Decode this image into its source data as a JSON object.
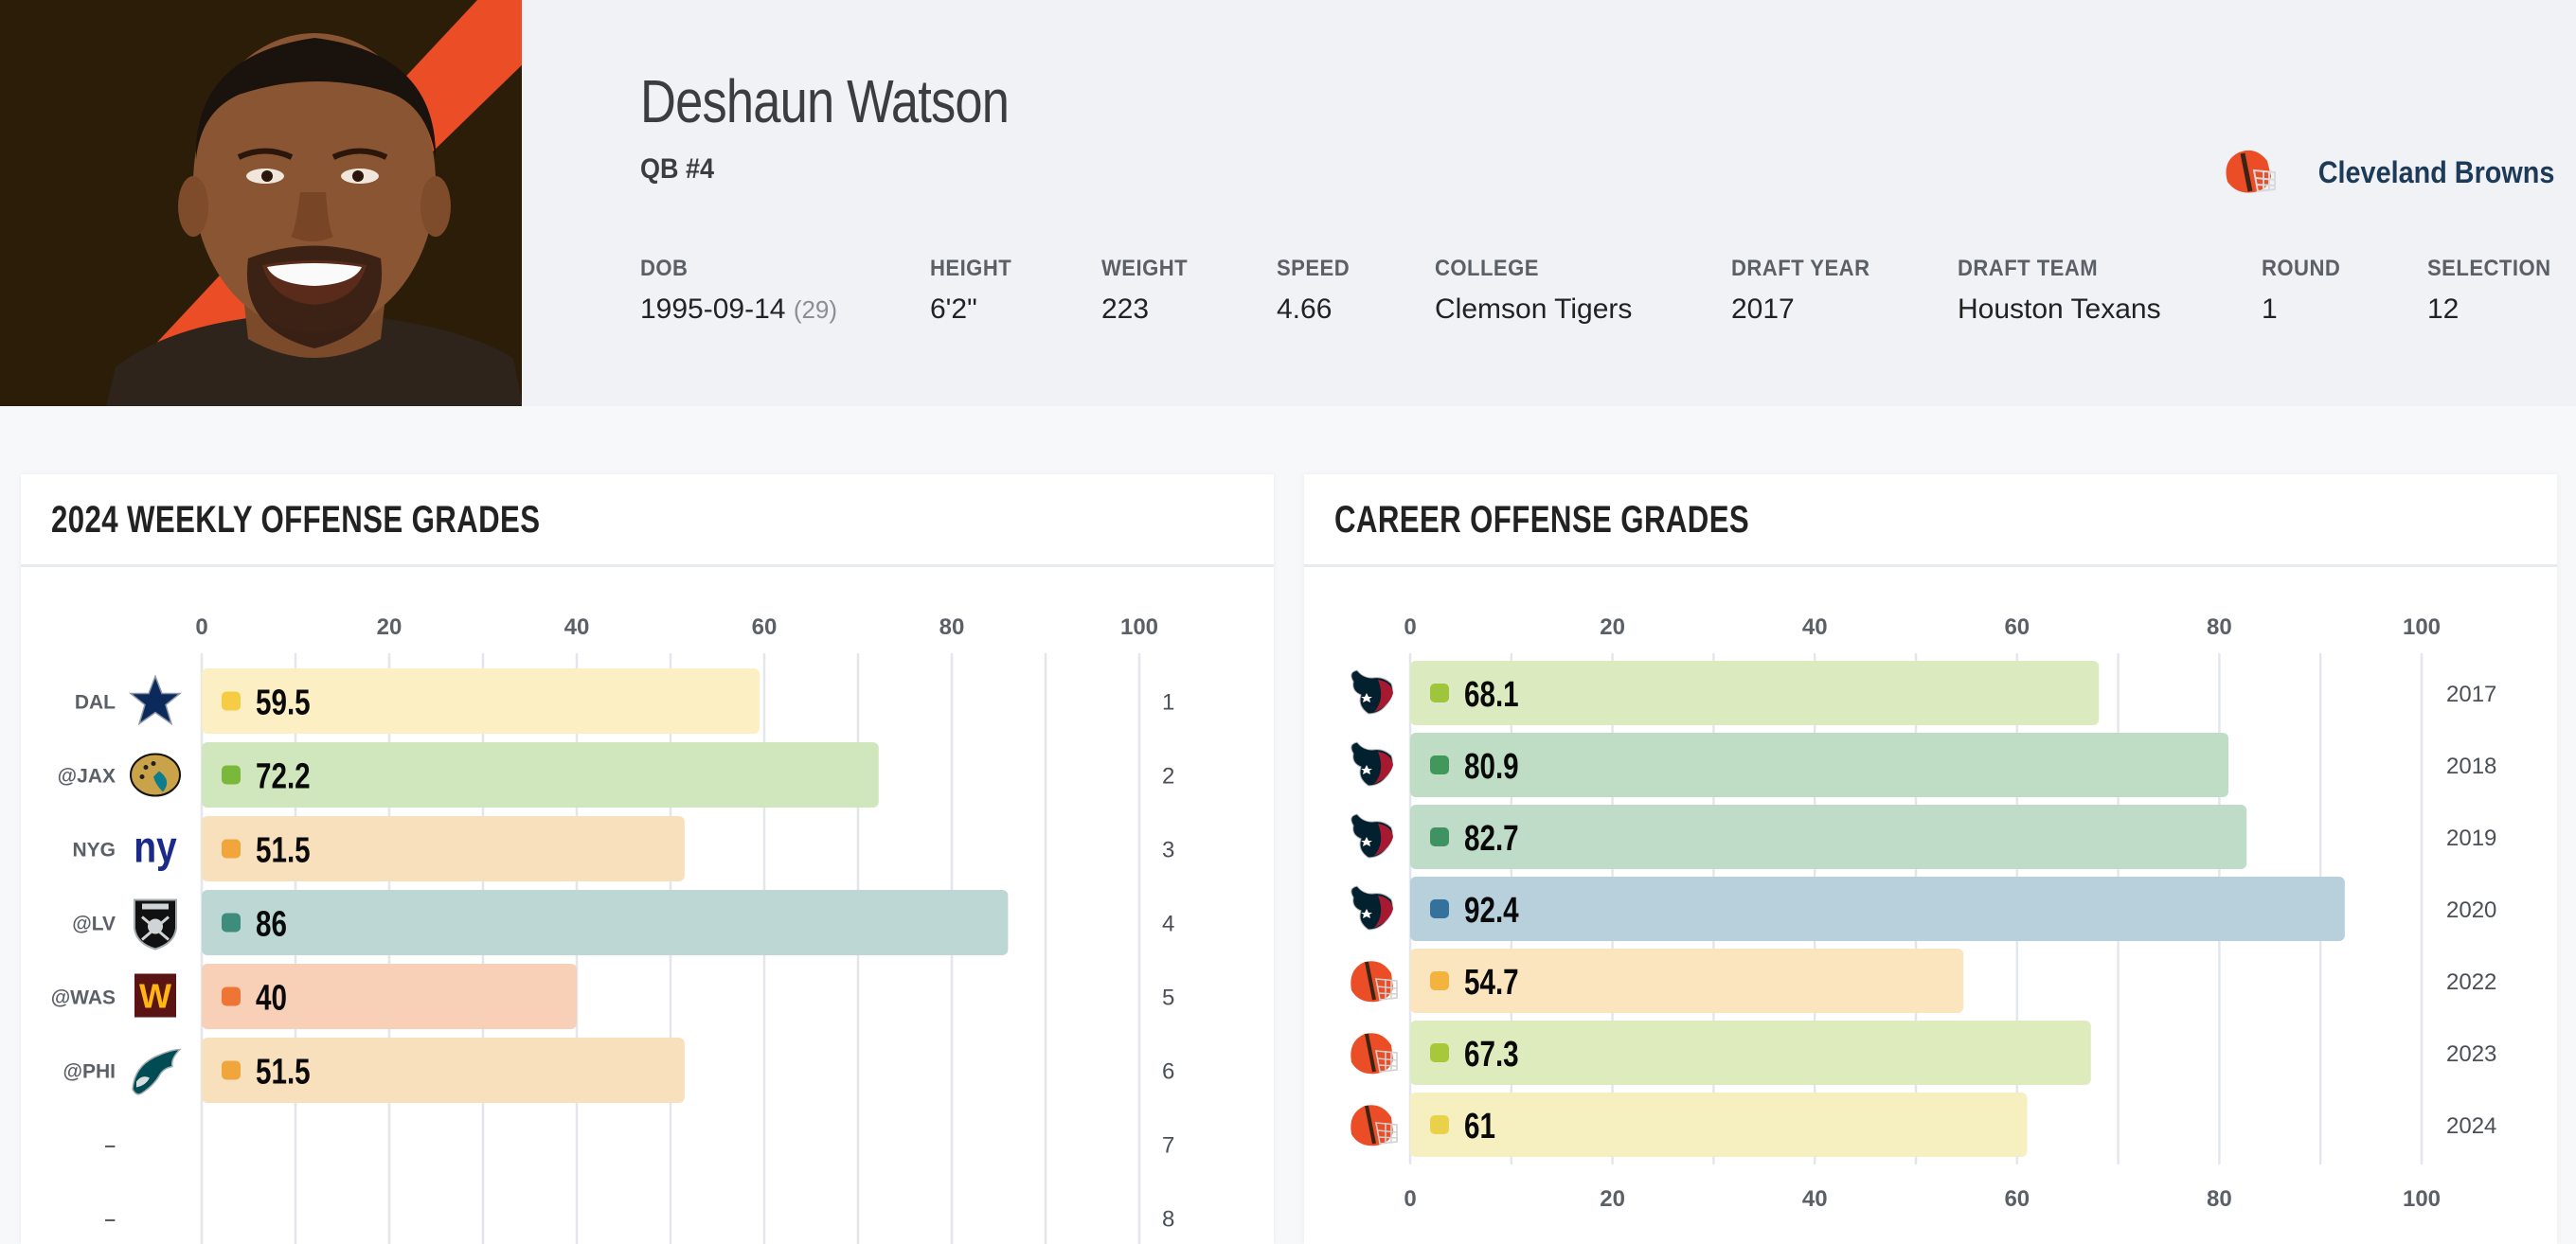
{
  "player": {
    "name": "Deshaun Watson",
    "position_number": "QB #4",
    "team": "Cleveland Browns",
    "team_icon": "browns-helmet-icon",
    "photo": "player-headshot",
    "colors": {
      "team_primary": "#2b1d08",
      "team_accent": "#eb4e26",
      "team_text": "#1d3a58"
    }
  },
  "stats": [
    {
      "label": "DOB",
      "value": "1995-09-14",
      "extra": "(29)"
    },
    {
      "label": "HEIGHT",
      "value": "6'2\""
    },
    {
      "label": "WEIGHT",
      "value": "223"
    },
    {
      "label": "SPEED",
      "value": "4.66"
    },
    {
      "label": "COLLEGE",
      "value": "Clemson Tigers"
    },
    {
      "label": "DRAFT YEAR",
      "value": "2017"
    },
    {
      "label": "DRAFT TEAM",
      "value": "Houston Texans"
    },
    {
      "label": "ROUND",
      "value": "1"
    },
    {
      "label": "SELECTION",
      "value": "12"
    }
  ],
  "chart_data": [
    {
      "type": "bar",
      "orientation": "horizontal",
      "title": "2024 WEEKLY OFFENSE GRADES",
      "xlim": [
        0,
        100
      ],
      "xticks": [
        0,
        20,
        40,
        60,
        80,
        100
      ],
      "minor_gridlines_every": 10,
      "grid": true,
      "xaxis_position": "top",
      "rows": [
        {
          "opponent": "DAL",
          "logo": "cowboys-star-icon",
          "week": "1",
          "value": 59.5,
          "label": "59.5",
          "bar_color": "#fcefc3",
          "dot_color": "#f6cc45"
        },
        {
          "opponent": "@JAX",
          "logo": "jaguars-logo-icon",
          "week": "2",
          "value": 72.2,
          "label": "72.2",
          "bar_color": "#d0e6bc",
          "dot_color": "#79b83a"
        },
        {
          "opponent": "NYG",
          "logo": "giants-ny-icon",
          "week": "3",
          "value": 51.5,
          "label": "51.5",
          "bar_color": "#f9e0bd",
          "dot_color": "#f0a53d"
        },
        {
          "opponent": "@LV",
          "logo": "raiders-shield-icon",
          "week": "4",
          "value": 86,
          "label": "86",
          "bar_color": "#bdd8d4",
          "dot_color": "#3d8c7c"
        },
        {
          "opponent": "@WAS",
          "logo": "commanders-w-icon",
          "week": "5",
          "value": 40,
          "label": "40",
          "bar_color": "#f8d0b8",
          "dot_color": "#ee7534"
        },
        {
          "opponent": "@PHI",
          "logo": "eagles-head-icon",
          "week": "6",
          "value": 51.5,
          "label": "51.5",
          "bar_color": "#f9e0bd",
          "dot_color": "#f0a53d"
        },
        {
          "opponent": "–",
          "logo": null,
          "week": "7",
          "value": null,
          "label": ""
        },
        {
          "opponent": "–",
          "logo": null,
          "week": "8",
          "value": null,
          "label": ""
        }
      ]
    },
    {
      "type": "bar",
      "orientation": "horizontal",
      "title": "CAREER OFFENSE GRADES",
      "xlim": [
        0,
        100
      ],
      "xticks": [
        0,
        20,
        40,
        60,
        80,
        100
      ],
      "minor_gridlines_every": 10,
      "grid": true,
      "xaxis_position": "top-and-bottom",
      "rows": [
        {
          "team_logo": "texans-bull-icon",
          "year": "2017",
          "value": 68.1,
          "label": "68.1",
          "bar_color": "#dcebbf",
          "dot_color": "#9fc53c"
        },
        {
          "team_logo": "texans-bull-icon",
          "year": "2018",
          "value": 80.9,
          "label": "80.9",
          "bar_color": "#bfdcc5",
          "dot_color": "#41985a"
        },
        {
          "team_logo": "texans-bull-icon",
          "year": "2019",
          "value": 82.7,
          "label": "82.7",
          "bar_color": "#bfdcc8",
          "dot_color": "#3f9362"
        },
        {
          "team_logo": "texans-bull-icon",
          "year": "2020",
          "value": 92.4,
          "label": "92.4",
          "bar_color": "#b8cfdc",
          "dot_color": "#34729d"
        },
        {
          "team_logo": "browns-helmet-icon",
          "year": "2022",
          "value": 54.7,
          "label": "54.7",
          "bar_color": "#fbe5bf",
          "dot_color": "#f3b33f"
        },
        {
          "team_logo": "browns-helmet-icon",
          "year": "2023",
          "value": 67.3,
          "label": "67.3",
          "bar_color": "#deebbd",
          "dot_color": "#a9c73b"
        },
        {
          "team_logo": "browns-helmet-icon",
          "year": "2024",
          "value": 61,
          "label": "61",
          "bar_color": "#f6efc0",
          "dot_color": "#e9d24a"
        }
      ]
    }
  ]
}
